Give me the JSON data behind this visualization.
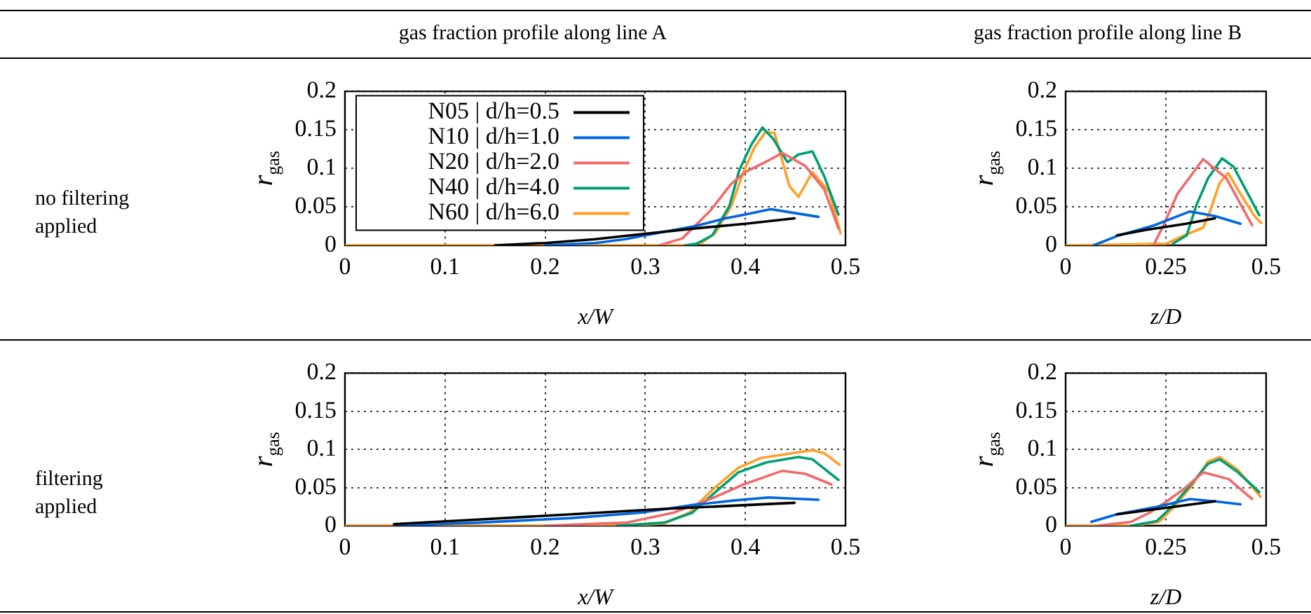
{
  "chart_data": [
    {
      "type": "line",
      "title": "gas fraction profile along line A",
      "annotations": [
        "no filtering applied"
      ],
      "xlabel": "x/W",
      "ylabel": "r$_{gas}$",
      "xlim": [
        0,
        0.5
      ],
      "xticks": [
        0,
        0.1,
        0.2,
        0.3,
        0.4,
        0.5
      ],
      "ylim": [
        0,
        0.2
      ],
      "yticks": [
        0,
        0.05,
        0.1,
        0.15,
        0.2
      ],
      "grid": true,
      "legend": "top left",
      "marker": "none",
      "line_style": "solid",
      "series": [
        {
          "name": "N05 | d/h=0.5",
          "color": "#000000",
          "x": [
            0.15,
            0.2,
            0.25,
            0.3,
            0.35,
            0.4,
            0.449
          ],
          "values": [
            0,
            0.003,
            0.008,
            0.015,
            0.022,
            0.028,
            0.035
          ]
        },
        {
          "name": "N10 | d/h=1.0",
          "color": "#0066dd",
          "x": [
            0.2,
            0.25,
            0.28,
            0.3,
            0.35,
            0.38,
            0.4,
            0.425,
            0.473
          ],
          "values": [
            0,
            0.003,
            0.008,
            0.013,
            0.025,
            0.035,
            0.04,
            0.047,
            0.037
          ]
        },
        {
          "name": "N20 | d/h=2.0",
          "color": "#f06a6a",
          "x": [
            0.314,
            0.337,
            0.365,
            0.386,
            0.4,
            0.421,
            0.437,
            0.46,
            0.479,
            0.493
          ],
          "values": [
            0,
            0.009,
            0.045,
            0.08,
            0.095,
            0.109,
            0.12,
            0.103,
            0.072,
            0.022
          ]
        },
        {
          "name": "N40 | d/h=4.0",
          "color": "#009e73",
          "x": [
            0.34,
            0.351,
            0.367,
            0.384,
            0.394,
            0.406,
            0.417,
            0.428,
            0.442,
            0.453,
            0.467,
            0.479,
            0.493
          ],
          "values": [
            0,
            0.002,
            0.013,
            0.051,
            0.098,
            0.131,
            0.153,
            0.138,
            0.108,
            0.118,
            0.122,
            0.089,
            0.04
          ]
        },
        {
          "name": "N60 | d/h=6.0",
          "color": "#ff9f27",
          "x": [
            0,
            0.34,
            0.356,
            0.37,
            0.386,
            0.398,
            0.409,
            0.42,
            0.429,
            0.444,
            0.453,
            0.467,
            0.484,
            0.495
          ],
          "values": [
            0,
            0,
            0.003,
            0.016,
            0.051,
            0.095,
            0.127,
            0.147,
            0.146,
            0.077,
            0.063,
            0.095,
            0.069,
            0.016
          ]
        }
      ]
    },
    {
      "type": "line",
      "title": "gas fraction profile along line B",
      "xlabel": "z/D",
      "ylabel": "r$_{gas}$",
      "xlim": [
        0,
        0.5
      ],
      "xticks": [
        0,
        0.25,
        0.5
      ],
      "ylim": [
        0,
        0.2
      ],
      "yticks": [
        0,
        0.05,
        0.1,
        0.15,
        0.2
      ],
      "grid": true,
      "marker": "none",
      "line_style": "solid",
      "series": [
        {
          "color": "#000000",
          "x": [
            0.128,
            0.2,
            0.3,
            0.372
          ],
          "values": [
            0.013,
            0.02,
            0.028,
            0.035
          ]
        },
        {
          "color": "#0066dd",
          "x": [
            0.07,
            0.128,
            0.221,
            0.31,
            0.372,
            0.436
          ],
          "values": [
            0,
            0.012,
            0.026,
            0.044,
            0.038,
            0.028
          ]
        },
        {
          "color": "#f06a6a",
          "x": [
            0.221,
            0.244,
            0.279,
            0.343,
            0.401,
            0.465
          ],
          "values": [
            0.002,
            0.026,
            0.067,
            0.112,
            0.087,
            0.026
          ]
        },
        {
          "color": "#009e73",
          "x": [
            0.267,
            0.302,
            0.326,
            0.355,
            0.39,
            0.419,
            0.483
          ],
          "values": [
            0.002,
            0.013,
            0.052,
            0.087,
            0.113,
            0.102,
            0.039
          ]
        },
        {
          "color": "#ff9f27",
          "x": [
            0,
            0.25,
            0.291,
            0.343,
            0.36,
            0.384,
            0.405,
            0.436,
            0.471,
            0.488
          ],
          "values": [
            0,
            0.002,
            0.012,
            0.023,
            0.044,
            0.081,
            0.094,
            0.067,
            0.038,
            0.029
          ]
        }
      ]
    },
    {
      "type": "line",
      "annotations": [
        "filtering applied"
      ],
      "xlabel": "x/W",
      "ylabel": "r$_{gas}$",
      "xlim": [
        0,
        0.5
      ],
      "xticks": [
        0,
        0.1,
        0.2,
        0.3,
        0.4,
        0.5
      ],
      "ylim": [
        0,
        0.2
      ],
      "yticks": [
        0,
        0.05,
        0.1,
        0.15,
        0.2
      ],
      "grid": true,
      "marker": "none",
      "line_style": "solid",
      "series": [
        {
          "color": "#000000",
          "x": [
            0.049,
            0.133,
            0.226,
            0.319,
            0.449
          ],
          "values": [
            0.002,
            0.008,
            0.015,
            0.022,
            0.03
          ]
        },
        {
          "color": "#0066dd",
          "x": [
            0.05,
            0.133,
            0.226,
            0.295,
            0.347,
            0.388,
            0.423,
            0.473
          ],
          "values": [
            0,
            0.004,
            0.01,
            0.017,
            0.027,
            0.033,
            0.037,
            0.034
          ]
        },
        {
          "color": "#f06a6a",
          "x": [
            0.2,
            0.281,
            0.328,
            0.365,
            0.398,
            0.437,
            0.46,
            0.486
          ],
          "values": [
            0,
            0.004,
            0.017,
            0.035,
            0.054,
            0.072,
            0.068,
            0.054
          ]
        },
        {
          "color": "#009e73",
          "x": [
            0.272,
            0.319,
            0.347,
            0.37,
            0.393,
            0.421,
            0.453,
            0.467,
            0.493
          ],
          "values": [
            0,
            0.004,
            0.017,
            0.044,
            0.07,
            0.083,
            0.09,
            0.087,
            0.06
          ]
        },
        {
          "color": "#ff9f27",
          "x": [
            0,
            0.281,
            0.319,
            0.344,
            0.367,
            0.393,
            0.416,
            0.437,
            0.467,
            0.479,
            0.494
          ],
          "values": [
            0,
            0,
            0.003,
            0.017,
            0.047,
            0.076,
            0.089,
            0.093,
            0.099,
            0.095,
            0.08
          ]
        }
      ]
    },
    {
      "type": "line",
      "xlabel": "z/D",
      "ylabel": "r$_{gas}$",
      "xlim": [
        0,
        0.5
      ],
      "xticks": [
        0,
        0.25,
        0.5
      ],
      "ylim": [
        0,
        0.2
      ],
      "yticks": [
        0,
        0.05,
        0.1,
        0.15,
        0.2
      ],
      "grid": true,
      "marker": "none",
      "line_style": "solid",
      "series": [
        {
          "color": "#000000",
          "x": [
            0.128,
            0.244,
            0.372
          ],
          "values": [
            0.015,
            0.023,
            0.032
          ]
        },
        {
          "color": "#0066dd",
          "x": [
            0.064,
            0.128,
            0.221,
            0.31,
            0.372,
            0.436
          ],
          "values": [
            0.005,
            0.015,
            0.024,
            0.035,
            0.032,
            0.028
          ]
        },
        {
          "color": "#f06a6a",
          "x": [
            0.081,
            0.163,
            0.209,
            0.25,
            0.297,
            0.343,
            0.407,
            0.465
          ],
          "values": [
            0,
            0.005,
            0.017,
            0.031,
            0.049,
            0.07,
            0.061,
            0.035
          ]
        },
        {
          "color": "#009e73",
          "x": [
            0.163,
            0.227,
            0.267,
            0.314,
            0.355,
            0.384,
            0.43,
            0.483
          ],
          "values": [
            0,
            0.006,
            0.026,
            0.055,
            0.081,
            0.087,
            0.07,
            0.044
          ]
        },
        {
          "color": "#ff9f27",
          "x": [
            0,
            0.169,
            0.233,
            0.273,
            0.314,
            0.355,
            0.384,
            0.43,
            0.486
          ],
          "values": [
            0,
            0,
            0.005,
            0.026,
            0.052,
            0.084,
            0.09,
            0.073,
            0.038
          ]
        }
      ]
    }
  ]
}
